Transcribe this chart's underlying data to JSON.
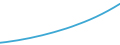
{
  "x": [
    0,
    1,
    2,
    3,
    4,
    5,
    6,
    7,
    8,
    9,
    10,
    11,
    12,
    13,
    14,
    15,
    16,
    17,
    18,
    19,
    20
  ],
  "y": [
    2.0,
    2.15,
    2.35,
    2.55,
    2.8,
    3.05,
    3.35,
    3.65,
    4.0,
    4.35,
    4.75,
    5.15,
    5.6,
    6.1,
    6.6,
    7.15,
    7.75,
    8.4,
    9.1,
    9.85,
    10.65
  ],
  "line_color": "#3da8d4",
  "line_width": 1.3,
  "background_color": "#ffffff",
  "xlim": [
    0,
    20
  ],
  "ylim": [
    1.5,
    11.5
  ]
}
